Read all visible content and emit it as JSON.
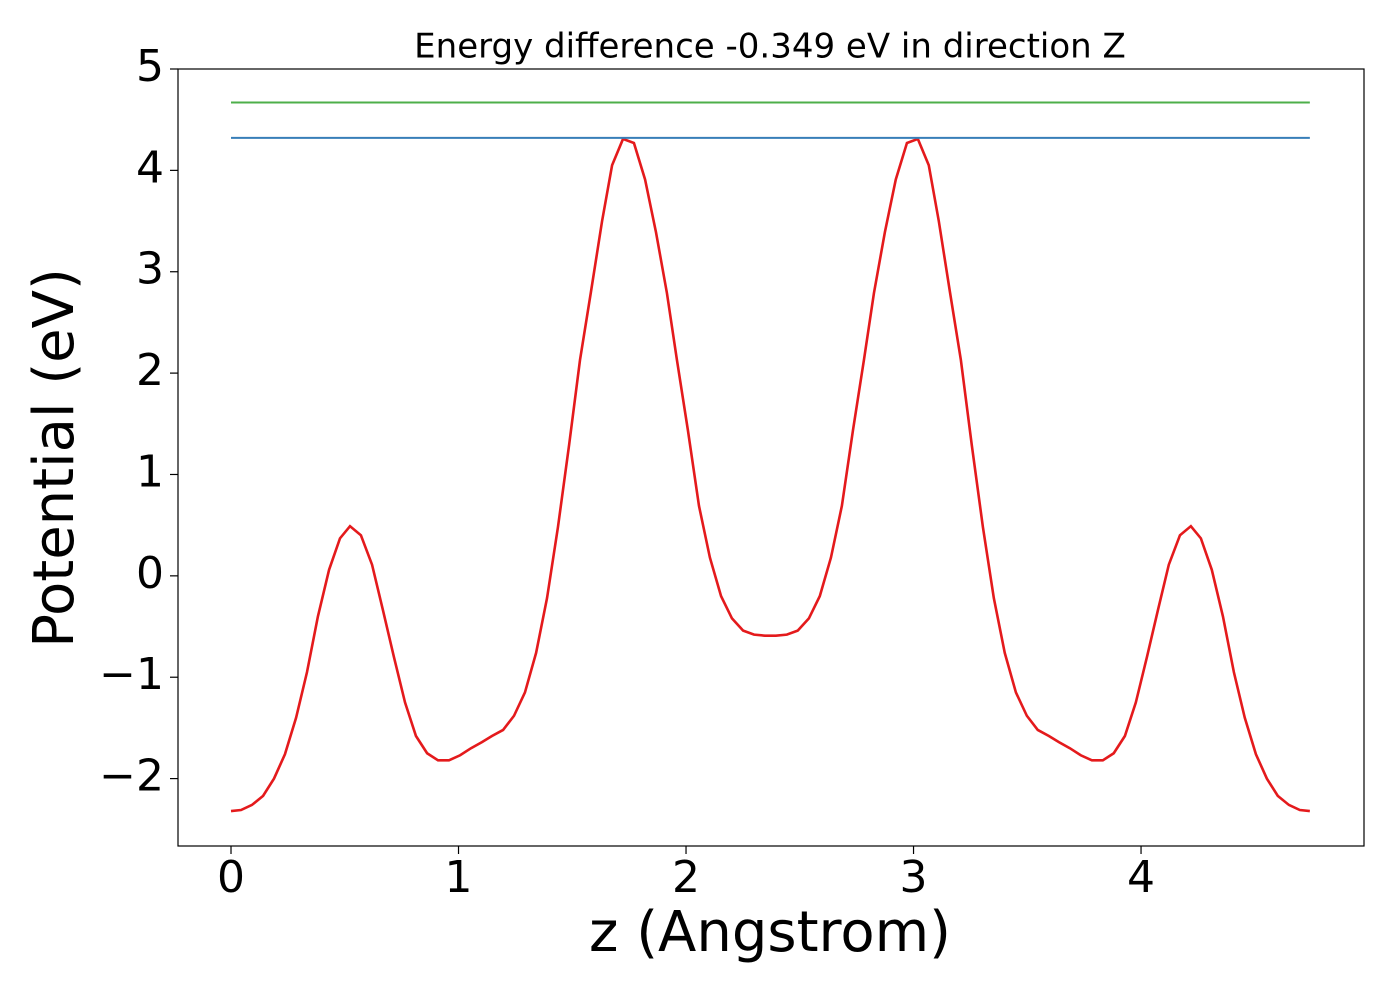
{
  "chart_data": {
    "type": "line",
    "title": "Energy difference -0.349 eV in direction Z",
    "xlabel": "z (Angstrom)",
    "ylabel": "Potential (eV)",
    "xlim": [
      -0.233,
      4.98
    ],
    "ylim": [
      -2.665,
      5.0
    ],
    "xticks": [
      0,
      1,
      2,
      3,
      4
    ],
    "yticks": [
      {
        "value": -2,
        "label": "−2"
      },
      {
        "value": -1,
        "label": "−1"
      },
      0,
      1,
      2,
      3,
      4,
      5
    ],
    "grid": false,
    "series": [
      {
        "color": "#e41a1c",
        "x": [
          0,
          0.044,
          0.092,
          0.141,
          0.189,
          0.237,
          0.286,
          0.334,
          0.382,
          0.431,
          0.479,
          0.523,
          0.571,
          0.62,
          0.668,
          0.716,
          0.765,
          0.813,
          0.862,
          0.91,
          0.958,
          1.007,
          1.055,
          1.103,
          1.147,
          1.196,
          1.244,
          1.292,
          1.341,
          1.389,
          1.437,
          1.486,
          1.534,
          1.582,
          1.631,
          1.675,
          1.723,
          1.771,
          1.82,
          1.868,
          1.916,
          1.96,
          2.008,
          2.057,
          2.105,
          2.154,
          2.202,
          2.251,
          2.299,
          2.347,
          2.395,
          2.443,
          2.491,
          2.54,
          2.588,
          2.637,
          2.685,
          2.734,
          2.782,
          2.826,
          2.874,
          2.922,
          2.971,
          3.019,
          3.067,
          3.111,
          3.16,
          3.208,
          3.256,
          3.305,
          3.353,
          3.401,
          3.45,
          3.498,
          3.546,
          3.595,
          3.639,
          3.687,
          3.735,
          3.784,
          3.832,
          3.88,
          3.929,
          3.977,
          4.026,
          4.074,
          4.122,
          4.171,
          4.219,
          4.263,
          4.311,
          4.36,
          4.408,
          4.456,
          4.505,
          4.553,
          4.601,
          4.65,
          4.698,
          4.742
        ],
        "values": [
          -2.32,
          -2.31,
          -2.26,
          -2.17,
          -2.0,
          -1.76,
          -1.4,
          -0.95,
          -0.4,
          0.06,
          0.37,
          0.49,
          0.4,
          0.11,
          -0.34,
          -0.8,
          -1.25,
          -1.58,
          -1.75,
          -1.82,
          -1.82,
          -1.77,
          -1.7,
          -1.64,
          -1.58,
          -1.52,
          -1.38,
          -1.15,
          -0.76,
          -0.22,
          0.48,
          1.29,
          2.13,
          2.8,
          3.5,
          4.05,
          4.31,
          4.27,
          3.91,
          3.39,
          2.79,
          2.13,
          1.44,
          0.69,
          0.18,
          -0.2,
          -0.42,
          -0.54,
          -0.58,
          -0.59,
          -0.59,
          -0.58,
          -0.54,
          -0.42,
          -0.2,
          0.18,
          0.69,
          1.44,
          2.13,
          2.79,
          3.39,
          3.91,
          4.27,
          4.31,
          4.05,
          3.5,
          2.8,
          2.13,
          1.29,
          0.48,
          -0.22,
          -0.76,
          -1.15,
          -1.38,
          -1.52,
          -1.58,
          -1.64,
          -1.7,
          -1.77,
          -1.82,
          -1.82,
          -1.75,
          -1.58,
          -1.25,
          -0.8,
          -0.34,
          0.11,
          0.4,
          0.49,
          0.37,
          0.06,
          -0.4,
          -0.95,
          -1.4,
          -1.76,
          -2.0,
          -2.17,
          -2.26,
          -2.31,
          -2.32
        ]
      },
      {
        "color": "#377eb8",
        "x": [
          0,
          4.742
        ],
        "values": [
          4.32,
          4.32
        ]
      },
      {
        "color": "#4daf4a",
        "x": [
          0,
          4.742
        ],
        "values": [
          4.67,
          4.67
        ]
      }
    ]
  }
}
